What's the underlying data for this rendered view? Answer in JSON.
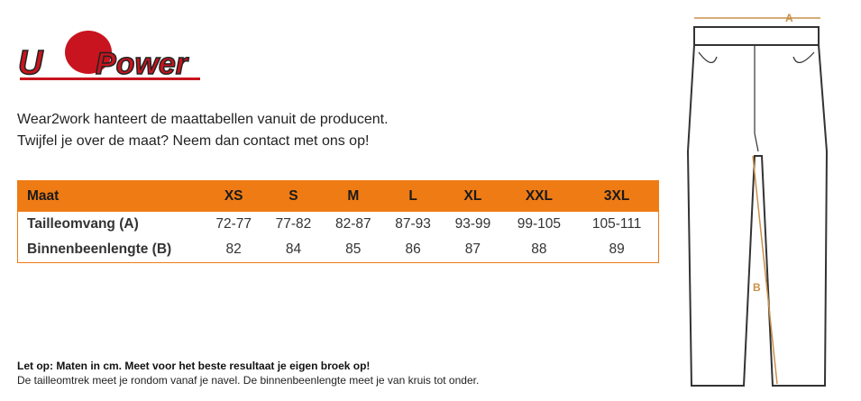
{
  "logo": {
    "left": "U",
    "right": "Power"
  },
  "intro": [
    "Wear2work hanteert de maattabellen vanuit de producent.",
    "Twijfel je over de maat? Neem dan contact met ons op!"
  ],
  "table": {
    "header": [
      "Maat",
      "XS",
      "S",
      "M",
      "L",
      "XL",
      "XXL",
      "3XL"
    ],
    "rows": [
      [
        "Tailleomvang (A)",
        "72-77",
        "77-82",
        "82-87",
        "87-93",
        "93-99",
        "99-105",
        "105-111"
      ],
      [
        "Binnenbeenlengte (B)",
        82,
        84,
        85,
        86,
        87,
        88,
        89
      ]
    ]
  },
  "note": {
    "bold": "Let op: Maten in cm. Meet voor het beste resultaat je eigen broek op!",
    "text": "De tailleomtrek meet je rondom vanaf je navel. De binnenbeenlengte meet je van kruis tot onder."
  },
  "diagram": {
    "a_label": "A",
    "b_label": "B"
  }
}
